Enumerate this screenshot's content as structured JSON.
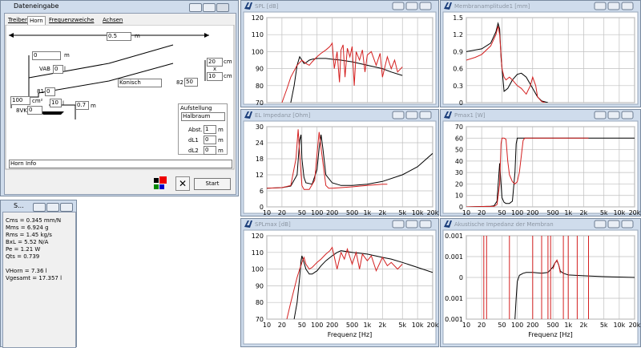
{
  "form": {
    "title": "Dateneingabe",
    "tabs": [
      "Treiber",
      "Horn",
      "Frequenzweiche",
      "Achsen"
    ],
    "items": [
      "0.5",
      "m",
      "0",
      "m",
      "VAB",
      "0",
      "l",
      "20",
      "cm",
      "x",
      "10",
      "cm",
      "Konisch",
      "82",
      "50",
      "81",
      "0",
      "100",
      "cm²",
      "10",
      "l",
      "0.7",
      "m",
      "8VK",
      "0",
      "Aufstellung",
      "Halbraum",
      "Abst.",
      "1",
      "m",
      "dL1",
      "0",
      "m",
      "dL2",
      "0",
      "m",
      "Horn Info",
      "Start"
    ]
  },
  "params": {
    "title": "S...",
    "lines": [
      "Cms = 0.345 mm/N",
      "Mms = 6.924 g",
      "Rms = 1.45 kg/s",
      "BxL = 5.52 N/A",
      "Pe = 1.21 W",
      "Qts = 0.739",
      "VHorn = 7.36 l",
      "Vgesamt = 17.357 l"
    ]
  },
  "chart_data": [
    {
      "type": "line",
      "title": "SPL [dB]",
      "log_x": true,
      "xtick_labels": false,
      "xlim": [
        10,
        20000
      ],
      "xticks": [
        10,
        20,
        50,
        100,
        200,
        500,
        1000,
        2000,
        5000,
        10000,
        20000
      ],
      "ylim": [
        70,
        120
      ],
      "yticks": [
        70,
        80,
        90,
        100,
        110,
        120
      ],
      "series": [
        {
          "color": "#000000",
          "x": [
            30,
            35,
            40,
            45,
            50,
            55,
            60,
            70,
            80,
            100,
            150,
            200,
            300,
            500,
            1000,
            2000,
            3000,
            5000
          ],
          "values": [
            70,
            80,
            92,
            97,
            95,
            93,
            93.5,
            95,
            95.5,
            96,
            96,
            95.5,
            95,
            94,
            92,
            90,
            88,
            86
          ]
        },
        {
          "color": "#d42020",
          "x": [
            20,
            25,
            30,
            40,
            50,
            60,
            70,
            80,
            100,
            120,
            150,
            180,
            200,
            220,
            250,
            280,
            300,
            330,
            360,
            400,
            450,
            500,
            550,
            600,
            700,
            800,
            900,
            1000,
            1200,
            1500,
            1800,
            2000,
            2500,
            3000,
            3500,
            4000,
            5000
          ],
          "values": [
            70,
            78,
            85,
            92,
            95,
            93,
            92,
            94,
            97,
            99,
            101,
            103,
            105,
            90,
            100,
            82,
            101,
            104,
            85,
            102,
            97,
            103,
            80,
            100,
            95,
            101,
            88,
            98,
            100,
            92,
            99,
            85,
            97,
            90,
            95,
            88,
            91
          ]
        }
      ]
    },
    {
      "type": "line",
      "title": "Membranamplitude1 [mm]",
      "log_x": true,
      "xtick_labels": false,
      "xlim": [
        10,
        20000
      ],
      "xticks": [
        10,
        20,
        50,
        100,
        200,
        500,
        1000,
        2000,
        5000,
        10000,
        20000
      ],
      "ylim": [
        0,
        1.5
      ],
      "yticks": [
        0,
        0.3,
        0.6,
        0.9,
        1.2,
        1.5
      ],
      "series": [
        {
          "color": "#000000",
          "x": [
            10,
            20,
            30,
            38,
            42,
            45,
            48,
            55,
            65,
            80,
            100,
            120,
            150,
            200,
            250,
            300,
            400
          ],
          "values": [
            0.9,
            0.95,
            1.05,
            1.25,
            1.4,
            1.3,
            0.8,
            0.2,
            0.25,
            0.4,
            0.5,
            0.52,
            0.45,
            0.25,
            0.1,
            0.03,
            0
          ]
        },
        {
          "color": "#d42020",
          "x": [
            10,
            15,
            20,
            30,
            38,
            42,
            45,
            50,
            55,
            60,
            70,
            80,
            100,
            120,
            150,
            180,
            200,
            230,
            250,
            300,
            350
          ],
          "values": [
            0.75,
            0.8,
            0.85,
            1.0,
            1.2,
            1.35,
            1.2,
            0.6,
            0.45,
            0.4,
            0.45,
            0.4,
            0.3,
            0.25,
            0.15,
            0.3,
            0.45,
            0.3,
            0.1,
            0.02,
            0
          ]
        }
      ]
    },
    {
      "type": "line",
      "title": "EL Impedanz [Ohm]",
      "log_x": true,
      "xtick_labels": true,
      "xlim": [
        10,
        20000
      ],
      "xticks": [
        10,
        20,
        50,
        100,
        200,
        500,
        {
          "value": 1000,
          "label": "1k"
        },
        {
          "value": 2000,
          "label": "2k"
        },
        {
          "value": 5000,
          "label": "5k"
        },
        {
          "value": 10000,
          "label": "10k"
        },
        {
          "value": 20000,
          "label": "20k"
        }
      ],
      "ylim": [
        0,
        30
      ],
      "yticks": [
        0,
        6,
        12,
        18,
        24,
        30
      ],
      "series": [
        {
          "color": "#000000",
          "x": [
            10,
            20,
            30,
            40,
            45,
            48,
            50,
            55,
            60,
            80,
            100,
            110,
            120,
            130,
            150,
            200,
            300,
            500,
            1000,
            2000,
            5000,
            10000,
            20000
          ],
          "values": [
            7,
            7.2,
            7.8,
            12,
            25,
            27,
            18,
            11,
            9,
            8.5,
            14,
            22,
            27,
            22,
            12,
            9,
            8,
            8,
            8.5,
            9.5,
            12,
            15,
            20
          ]
        },
        {
          "color": "#d42020",
          "x": [
            10,
            20,
            30,
            38,
            42,
            45,
            50,
            55,
            70,
            90,
            100,
            110,
            120,
            150,
            170,
            200,
            300,
            500,
            1000,
            2000,
            2500
          ],
          "values": [
            7,
            7.2,
            8,
            18,
            29,
            20,
            8,
            6.5,
            6.5,
            10,
            20,
            28,
            22,
            8,
            7,
            7,
            7.2,
            7.5,
            8,
            8.5,
            8.5
          ]
        }
      ]
    },
    {
      "type": "line",
      "title": "Pmax1 [W]",
      "log_x": true,
      "xtick_labels": true,
      "xlim": [
        10,
        20000
      ],
      "xticks": [
        10,
        20,
        50,
        100,
        200,
        500,
        {
          "value": 1000,
          "label": "1k"
        },
        {
          "value": 2000,
          "label": "2k"
        },
        {
          "value": 5000,
          "label": "5k"
        },
        {
          "value": 10000,
          "label": "10k"
        },
        {
          "value": 20000,
          "label": "20k"
        }
      ],
      "ylim": [
        0,
        70
      ],
      "yticks": [
        0,
        10,
        20,
        30,
        40,
        50,
        60,
        70
      ],
      "series": [
        {
          "color": "#000000",
          "x": [
            10,
            30,
            35,
            40,
            45,
            48,
            50,
            55,
            60,
            70,
            80,
            90,
            95,
            100,
            110,
            20000
          ],
          "values": [
            0,
            0.5,
            1,
            5,
            38,
            20,
            8,
            4,
            3,
            3,
            5,
            30,
            55,
            60,
            60,
            60
          ]
        },
        {
          "color": "#d42020",
          "x": [
            10,
            35,
            40,
            45,
            48,
            50,
            55,
            60,
            65,
            70,
            80,
            90,
            100,
            110,
            120,
            130,
            140,
            150,
            200,
            300,
            500,
            1000,
            2000,
            2500
          ],
          "values": [
            0,
            0.5,
            2,
            20,
            55,
            60,
            60,
            59,
            40,
            28,
            22,
            20,
            22,
            30,
            45,
            58,
            60,
            60,
            60,
            60,
            60,
            60,
            60,
            60
          ]
        }
      ]
    },
    {
      "type": "line",
      "title": "SPLmax [dB]",
      "xlabel": "Frequenz [Hz]",
      "log_x": true,
      "xtick_labels": true,
      "xlim": [
        10,
        20000
      ],
      "xticks": [
        10,
        20,
        50,
        100,
        200,
        500,
        {
          "value": 1000,
          "label": "1k"
        },
        {
          "value": 2000,
          "label": "2k"
        },
        {
          "value": 5000,
          "label": "5k"
        },
        {
          "value": 10000,
          "label": "10k"
        },
        {
          "value": 20000,
          "label": "20k"
        }
      ],
      "ylim": [
        70,
        120
      ],
      "yticks": [
        70,
        80,
        90,
        100,
        110,
        120
      ],
      "series": [
        {
          "color": "#000000",
          "x": [
            35,
            40,
            45,
            48,
            50,
            55,
            60,
            70,
            80,
            100,
            120,
            150,
            200,
            250,
            300,
            500,
            1000,
            2000,
            3000,
            5000,
            10000,
            20000
          ],
          "values": [
            70,
            80,
            95,
            105,
            108,
            104,
            100,
            97,
            97,
            99,
            102,
            105,
            108,
            110,
            111,
            110,
            109,
            107,
            106,
            104,
            101,
            98
          ]
        },
        {
          "color": "#d42020",
          "x": [
            25,
            30,
            35,
            40,
            45,
            50,
            55,
            60,
            70,
            80,
            100,
            120,
            150,
            180,
            200,
            250,
            300,
            350,
            400,
            500,
            600,
            700,
            800,
            1000,
            1200,
            1500,
            2000,
            2500,
            3000,
            4000,
            5000
          ],
          "values": [
            70,
            80,
            88,
            95,
            100,
            104,
            107,
            103,
            100,
            101,
            104,
            106,
            109,
            111,
            113,
            100,
            110,
            106,
            112,
            103,
            110,
            100,
            109,
            105,
            108,
            99,
            107,
            102,
            104,
            100,
            103
          ]
        }
      ]
    },
    {
      "type": "line",
      "title": "Akustische Impedanz der Membran",
      "xlabel": "Frequenz [Hz]",
      "log_x": true,
      "xtick_labels": true,
      "xlim": [
        10,
        20000
      ],
      "xticks": [
        10,
        20,
        50,
        100,
        200,
        500,
        {
          "value": 1000,
          "label": "1k"
        },
        {
          "value": 2000,
          "label": "2k"
        },
        {
          "value": 5000,
          "label": "5k"
        },
        {
          "value": 10000,
          "label": "10k"
        },
        {
          "value": 20000,
          "label": "20k"
        }
      ],
      "ylim": [
        -0.001,
        0.001
      ],
      "yticks": [
        0.001,
        {
          "value": 0.0005,
          "label": "0.001"
        },
        0,
        {
          "value": -0.0005,
          "label": "0.001"
        },
        {
          "value": -0.001,
          "label": "0.001"
        }
      ],
      "series": [
        {
          "color": "#000000",
          "x": [
            90,
            95,
            100,
            110,
            130,
            150,
            200,
            300,
            400,
            500,
            550,
            600,
            650,
            700,
            800,
            1000,
            2000,
            5000,
            10000,
            20000
          ],
          "values": [
            -0.001,
            -0.0005,
            -0.0001,
            5e-05,
            0.0001,
            0.00012,
            0.00012,
            0.0001,
            0.00012,
            0.00025,
            0.00035,
            0.0004,
            0.0003,
            0.00015,
            0.0001,
            6e-05,
            4e-05,
            2e-05,
            1e-05,
            0
          ]
        },
        {
          "color": "#d42020",
          "x": [
            22,
            22,
            22,
            25,
            25,
            25,
            70,
            70,
            70,
            200,
            200,
            200,
            300,
            300,
            300,
            400,
            400,
            400,
            450,
            450,
            450,
            800,
            800,
            800,
            1000,
            1000,
            1000,
            1500,
            1500,
            1500,
            2500,
            2500,
            2500,
            500,
            550,
            600,
            650,
            700
          ],
          "values": [
            0.001,
            -0.001,
            null,
            0.001,
            -0.001,
            null,
            0.001,
            -0.001,
            null,
            0.001,
            -0.001,
            null,
            0.001,
            -0.001,
            null,
            0.001,
            -0.001,
            null,
            0.001,
            -0.001,
            null,
            0.001,
            -0.001,
            null,
            0.001,
            -0.001,
            null,
            0.001,
            -0.001,
            null,
            0.001,
            -0.001,
            null,
            0.0002,
            0.00035,
            0.00042,
            0.0003,
            0.0001
          ]
        }
      ]
    }
  ]
}
